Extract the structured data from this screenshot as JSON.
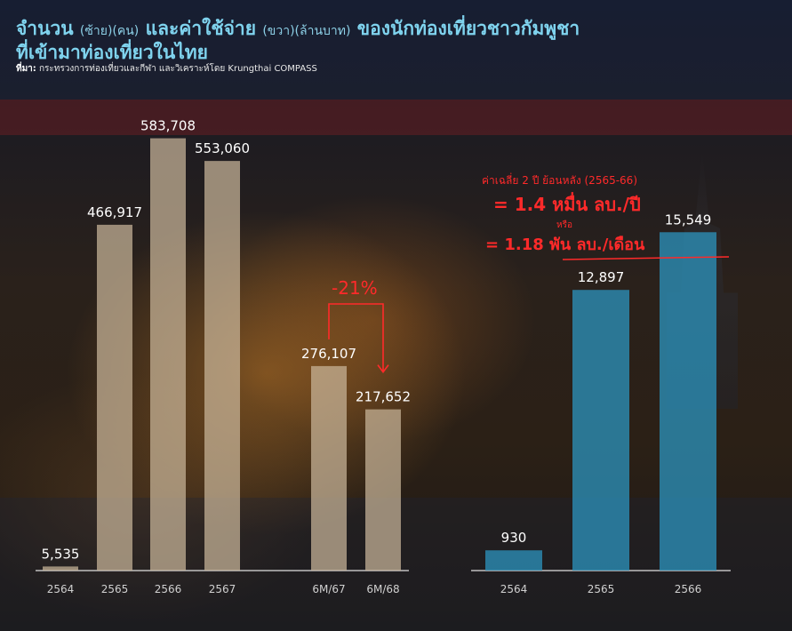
{
  "header": {
    "title_part1": "จำนวน",
    "title_left_note": "(ซ้าย)(คน)",
    "title_part2": "และค่าใช้จ่าย",
    "title_right_note": "(ขวา)(ล้านบาท)",
    "title_part3": "ของนักท่องเที่ยวชาวกัมพูชา",
    "title_line2": "ที่เข้ามาท่องเที่ยวในไทย",
    "source_label": "ที่มา:",
    "source_text": "กระทรวงการท่องเที่ยวและกีฬา และวิเคราะห์โดย Krungthai COMPASS"
  },
  "chart_data": [
    {
      "type": "bar",
      "categories": [
        "2564",
        "2565",
        "2566",
        "2567",
        "6M/67",
        "6M/68"
      ],
      "values": [
        5535,
        466917,
        583708,
        553060,
        276107,
        217652
      ],
      "value_labels": [
        "5,535",
        "466,917",
        "583,708",
        "553,060",
        "276,107",
        "217,652"
      ],
      "ylim": [
        0,
        600000
      ],
      "bar_color": "#c9b59a",
      "annotation": {
        "text": "-21%",
        "from": "6M/67",
        "to": "6M/68",
        "color": "#ff2a2a"
      }
    },
    {
      "type": "bar",
      "categories": [
        "2564",
        "2565",
        "2566"
      ],
      "values": [
        930,
        12897,
        15549
      ],
      "value_labels": [
        "930",
        "12,897",
        "15,549"
      ],
      "ylim": [
        0,
        16500
      ],
      "bar_color": "#2b8fb8",
      "annotation": {
        "line1": "ค่าเฉลี่ย 2 ปี ย้อนหลัง (2565-66)",
        "line2": "= 1.4  หมื่น ลบ./ปี",
        "line3": "หรือ",
        "line4": "= 1.18 พัน ลบ./เดือน",
        "color": "#ff2a2a"
      }
    }
  ]
}
